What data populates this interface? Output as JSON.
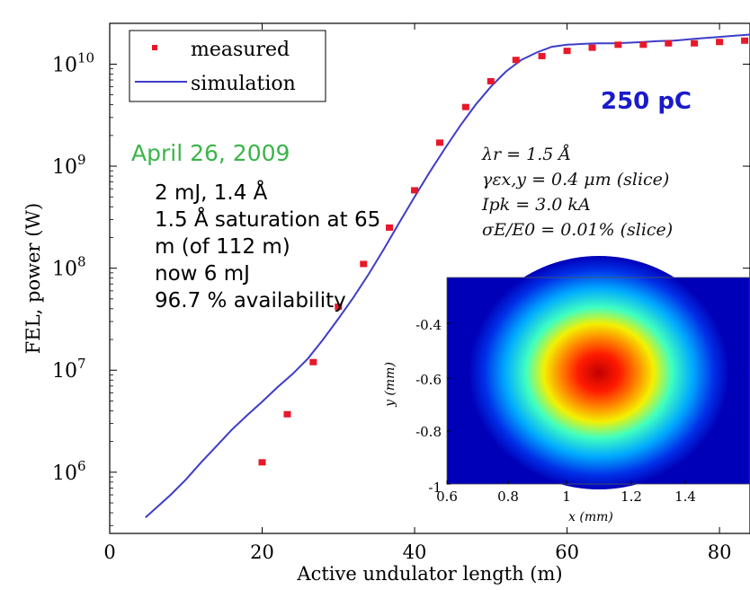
{
  "chart_data": {
    "type": "scatter",
    "xlabel": "Active undulator length (m)",
    "ylabel": "FEL, power (W)",
    "xlim": [
      0,
      84
    ],
    "ylim_log10": [
      5.4,
      10.4
    ],
    "yscale": "log",
    "x_ticks": [
      "0",
      "20",
      "40",
      "60",
      "80"
    ],
    "y_ticks": [
      {
        "base": "10",
        "exp": "6"
      },
      {
        "base": "10",
        "exp": "7"
      },
      {
        "base": "10",
        "exp": "8"
      },
      {
        "base": "10",
        "exp": "9"
      },
      {
        "base": "10",
        "exp": "10"
      }
    ],
    "legend": {
      "placement": "top-left",
      "entries": [
        "measured",
        "simulation"
      ]
    },
    "series": [
      {
        "name": "measured",
        "style": "points",
        "color": "#e8182a",
        "x": [
          20,
          23.3,
          26.7,
          30,
          33.3,
          36.7,
          40,
          43.3,
          46.7,
          50,
          53.3,
          56.7,
          60,
          63.3,
          66.7,
          70,
          73.3,
          76.7,
          80,
          83.3
        ],
        "y": [
          1250000.0,
          3700000.0,
          12000000.0,
          42000000.0,
          110000000.0,
          250000000.0,
          580000000.0,
          1700000000.0,
          3800000000.0,
          6800000000.0,
          11000000000.0,
          12000000000.0,
          13500000000.0,
          14500000000.0,
          15500000000.0,
          15500000000.0,
          16000000000.0,
          16000000000.0,
          16500000000.0,
          17000000000.0
        ]
      },
      {
        "name": "simulation",
        "style": "line",
        "color": "#3d3dc8",
        "x": [
          4.7,
          6,
          8,
          10,
          12,
          14,
          16,
          18,
          20,
          22,
          24,
          26,
          28,
          30,
          32,
          34,
          36,
          38,
          40,
          42,
          44,
          46,
          48,
          50,
          52,
          54,
          56,
          58,
          60,
          62,
          64,
          66,
          68,
          70,
          72,
          74,
          76,
          78,
          80,
          82,
          84
        ],
        "y": [
          360000.0,
          440000.0,
          600000.0,
          850000.0,
          1250000.0,
          1800000.0,
          2600000.0,
          3600000.0,
          4900000.0,
          6800000.0,
          9200000.0,
          13000000.0,
          20000000.0,
          32000000.0,
          52000000.0,
          88000000.0,
          155000000.0,
          280000000.0,
          500000000.0,
          880000000.0,
          1500000000.0,
          2500000000.0,
          4000000000.0,
          6000000000.0,
          8500000000.0,
          11000000000.0,
          13000000000.0,
          14800000000.0,
          15500000000.0,
          15800000000.0,
          16000000000.0,
          16000000000.0,
          16200000000.0,
          16500000000.0,
          16800000000.0,
          17000000000.0,
          17500000000.0,
          18000000000.0,
          18500000000.0,
          19000000000.0,
          19500000000.0
        ]
      }
    ],
    "annotations": {
      "charge": "250 pC",
      "date": "April 26, 2009",
      "notes": [
        "2 mJ, 1.4 Å",
        "1.5 Å saturation at 65",
        "m (of 112 m)",
        "now 6 mJ",
        "96.7 % availability"
      ],
      "params": [
        "λr = 1.5 Å",
        "γεx,y = 0.4 μm (slice)",
        "Ipk = 3.0 kA",
        "σE/E0 = 0.01% (slice)"
      ]
    },
    "inset": {
      "type": "heatmap",
      "xlabel": "x (mm)",
      "ylabel": "y (mm)",
      "x_ticks": [
        "0.6",
        "0.8",
        "1",
        "1.2",
        "1.4"
      ],
      "y_ticks": [
        "-0.4",
        "-0.6",
        "-0.8",
        "-1"
      ],
      "peak": [
        1.15,
        -0.6
      ]
    }
  },
  "colors": {
    "measured": "#e8182a",
    "simulation": "#3d3dc8",
    "charge_label": "#1a1acc",
    "date_label": "#3ab54a"
  }
}
